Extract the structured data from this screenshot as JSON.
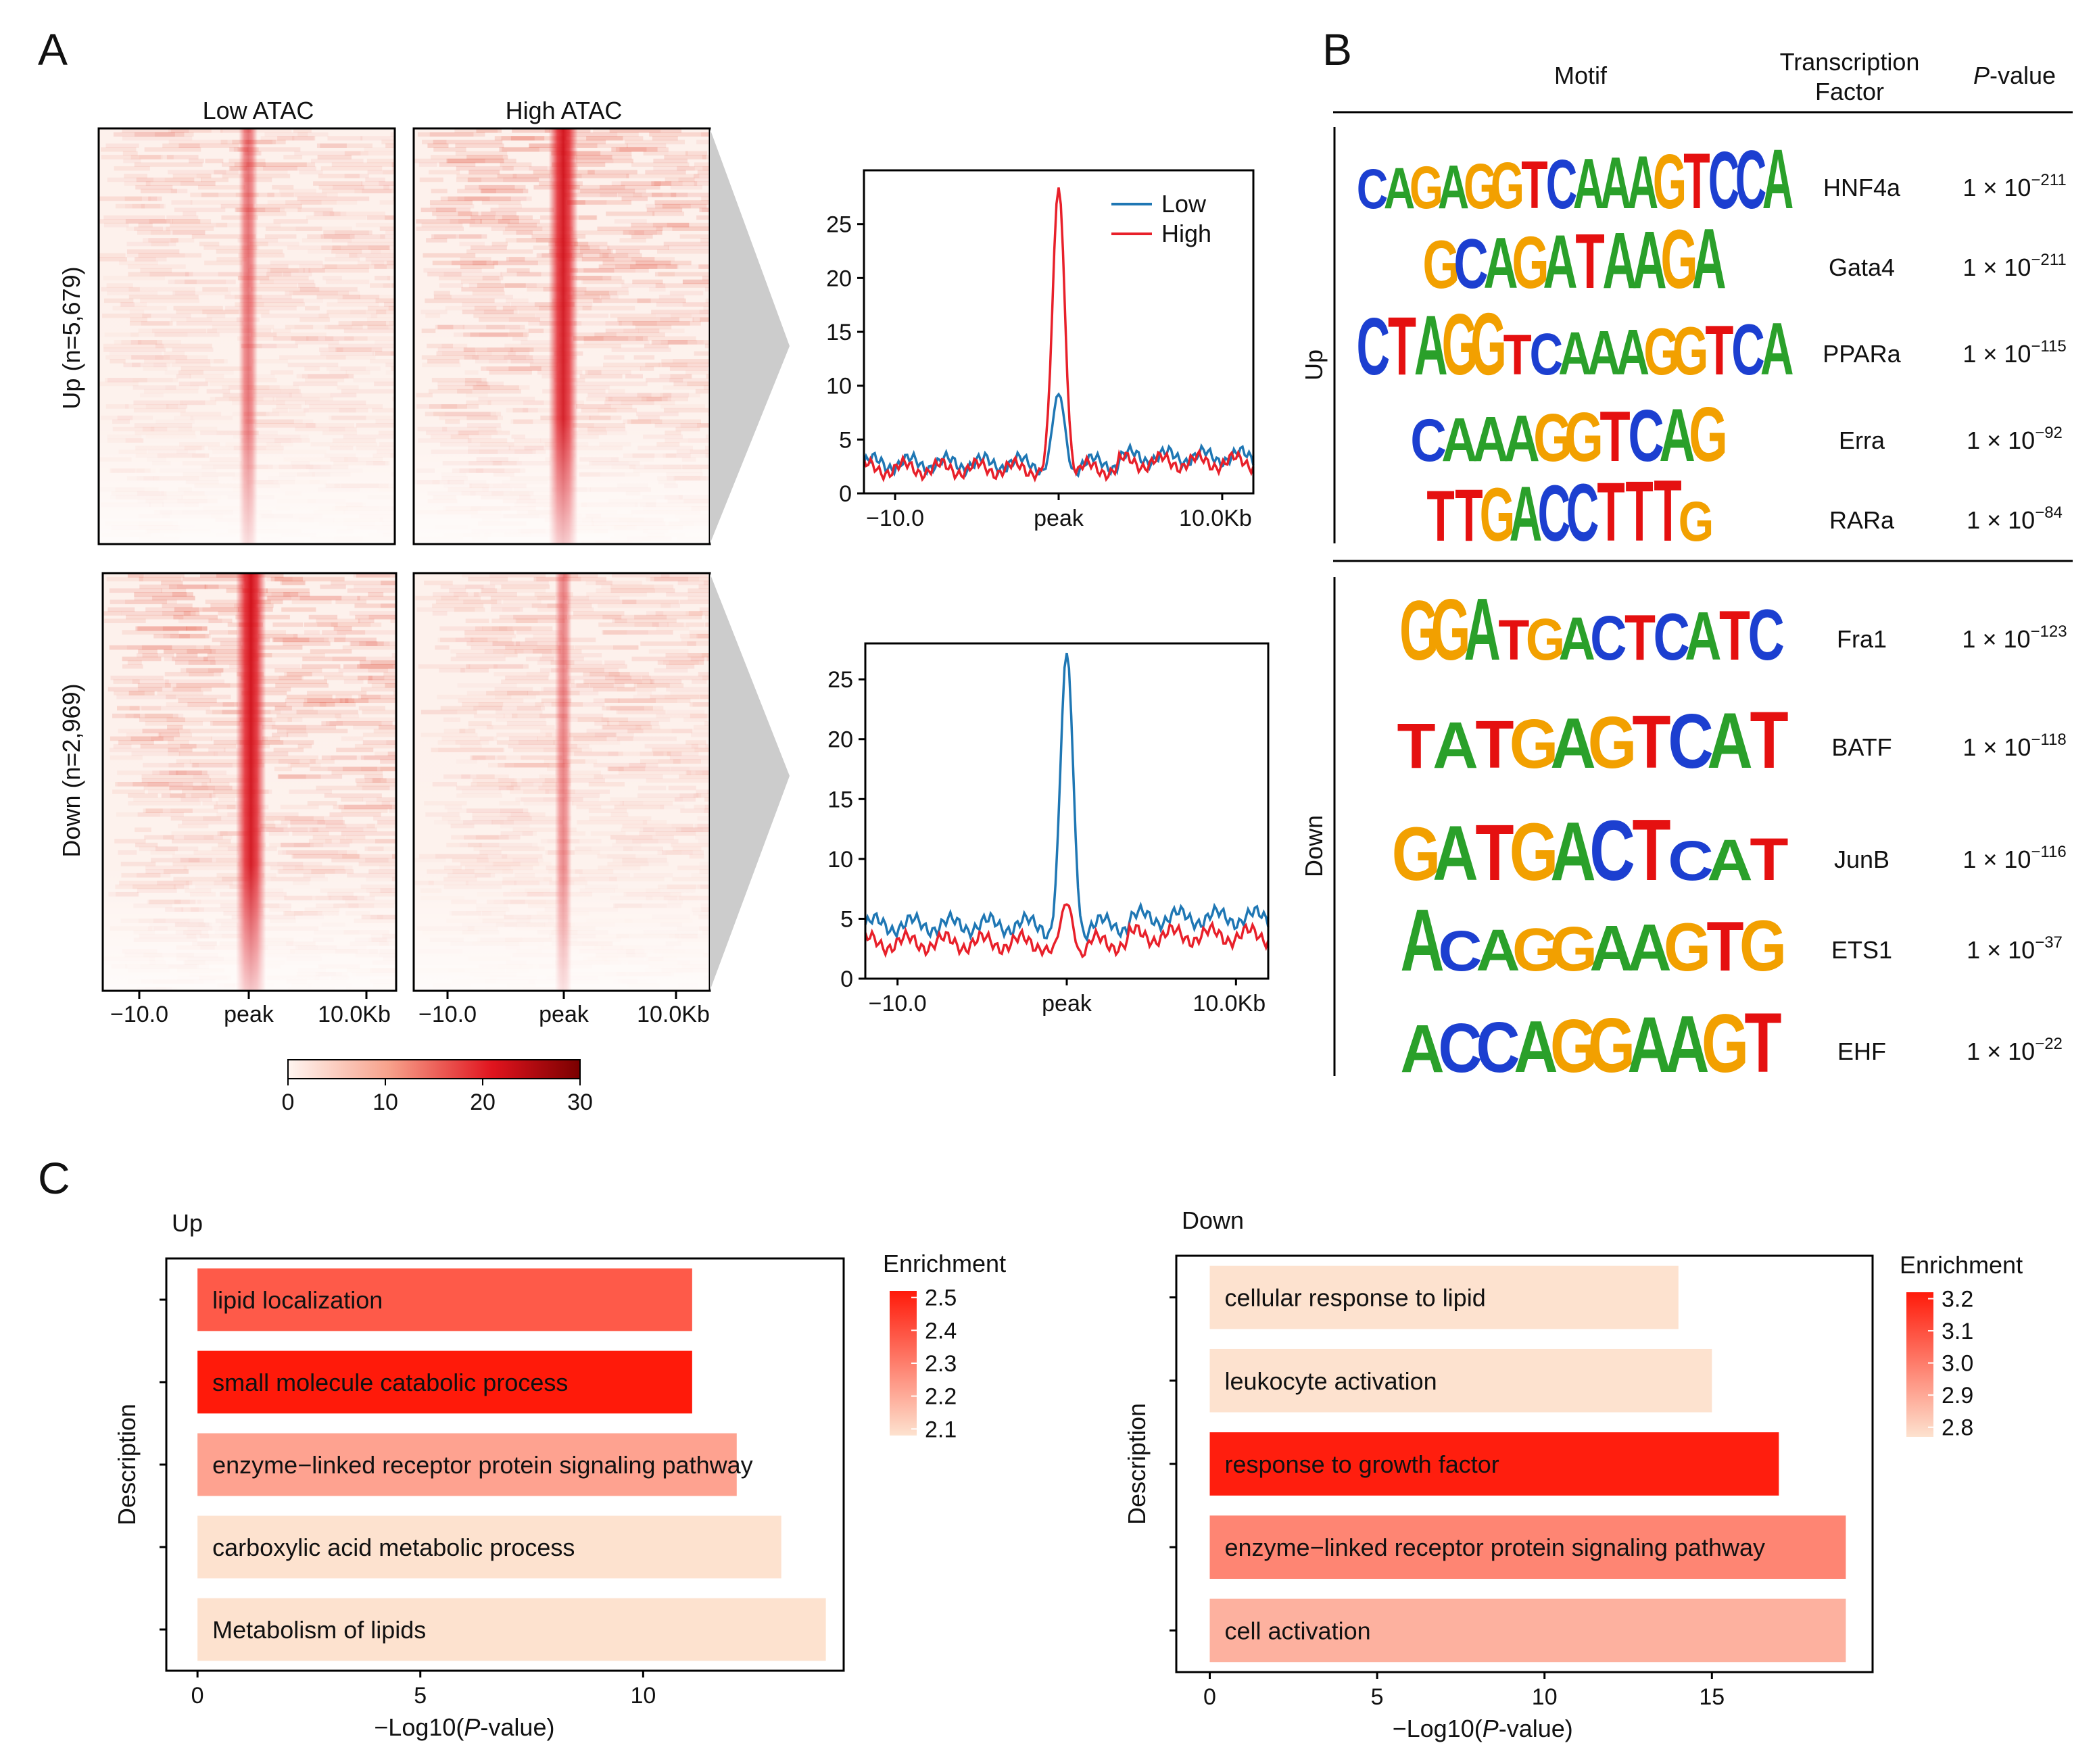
{
  "panel_letters": {
    "a": "A",
    "b": "B",
    "c": "C"
  },
  "colors": {
    "low": "#1f77b4",
    "high": "#e8202a",
    "heat_lo": "#fff5f0",
    "heat_hi": "#8b0000",
    "A": "#2aa02a",
    "C": "#1c3fd0",
    "G": "#f2a000",
    "T": "#e51010",
    "enrich_lo": "#fde2cf",
    "enrich_hi": "#ff1a0a",
    "funnel": "#cccccc"
  },
  "heatmaps": {
    "col_titles": [
      "Low ATAC",
      "High ATAC"
    ],
    "row_titles": [
      "Up (n=5,679)",
      "Down (n=2,969)"
    ],
    "xticks": [
      "−10.0",
      "peak",
      "10.0Kb"
    ],
    "intensity": [
      [
        0.35,
        0.9
      ],
      [
        0.95,
        0.25
      ]
    ],
    "colorbar": {
      "ticks": [
        "0",
        "10",
        "20",
        "30"
      ],
      "range": [
        0,
        30
      ]
    }
  },
  "chart_data": [
    {
      "type": "line",
      "panel": "A-up-profile",
      "legend": [
        "Low",
        "High"
      ],
      "legend_position": "top-right",
      "x": [
        -10,
        10
      ],
      "xticks": [
        "−10.0",
        "peak",
        "10.0Kb"
      ],
      "ylim": [
        0,
        30
      ],
      "yticks": [
        "0",
        "5",
        "10",
        "15",
        "20",
        "25"
      ],
      "series": [
        {
          "name": "Low",
          "baseline": 2.8,
          "dip": 0.5,
          "peak": 9.2
        },
        {
          "name": "High",
          "baseline": 2.3,
          "dip": 0.4,
          "peak": 28.4
        }
      ]
    },
    {
      "type": "line",
      "panel": "A-down-profile",
      "legend": [
        "Low",
        "High"
      ],
      "x": [
        -10,
        10
      ],
      "xticks": [
        "−10.0",
        "peak",
        "10.0Kb"
      ],
      "ylim": [
        0,
        28
      ],
      "yticks": [
        "0",
        "5",
        "10",
        "15",
        "20",
        "25"
      ],
      "series": [
        {
          "name": "Low",
          "baseline": 4.5,
          "dip": 1.0,
          "peak": 27.2
        },
        {
          "name": "High",
          "baseline": 3.0,
          "dip": 0.3,
          "peak": 6.2
        }
      ]
    },
    {
      "type": "table",
      "panel": "B-motifs",
      "headers": {
        "motif": "Motif",
        "tf_line1": "Transcription",
        "tf_line2": "Factor",
        "pval_p": "P",
        "pval_rest": "-value"
      },
      "groups": [
        "Up",
        "Down"
      ],
      "rows": [
        {
          "group": "Up",
          "motif": "CAGAGGTCAAAGTCCA",
          "tf": "HNF4a",
          "p_base": "1 × 10",
          "p_exp": "−211"
        },
        {
          "group": "Up",
          "motif": "GCAGATAAGA",
          "tf": "Gata4",
          "p_base": "1 × 10",
          "p_exp": "−211"
        },
        {
          "group": "Up",
          "motif": "CTAGGTCAAAGGTCA",
          "tf": "PPARa",
          "p_base": "1 × 10",
          "p_exp": "−115"
        },
        {
          "group": "Up",
          "motif": "CAAAGGTCAG",
          "tf": "Erra",
          "p_base": "1 × 10",
          "p_exp": "−92"
        },
        {
          "group": "Up",
          "motif": "TTGACCTTTG",
          "tf": "RARa",
          "p_base": "1 × 10",
          "p_exp": "−84"
        },
        {
          "group": "Down",
          "motif": "GGATGACTCATC",
          "tf": "Fra1",
          "p_base": "1 × 10",
          "p_exp": "−123"
        },
        {
          "group": "Down",
          "motif": "TATGAGTCAT",
          "tf": "BATF",
          "p_base": "1 × 10",
          "p_exp": "−118"
        },
        {
          "group": "Down",
          "motif": "GATGACTCAT",
          "tf": "JunB",
          "p_base": "1 × 10",
          "p_exp": "−116"
        },
        {
          "group": "Down",
          "motif": "ACAGGAAGTG",
          "tf": "ETS1",
          "p_base": "1 × 10",
          "p_exp": "−37"
        },
        {
          "group": "Down",
          "motif": "ACCAGGAAGT",
          "tf": "EHF",
          "p_base": "1 × 10",
          "p_exp": "−22"
        }
      ]
    },
    {
      "type": "bar",
      "panel": "C-up",
      "title": "Up",
      "xlabel_pre": "−Log10(",
      "xlabel_p": "P",
      "xlabel_post": "-value)",
      "ylabel": "Description",
      "xlim": [
        -0.7,
        14.5
      ],
      "xticks": [
        0,
        5,
        10
      ],
      "categories": [
        "lipid localization",
        "small molecule catabolic process",
        "enzyme−linked receptor protein signaling pathway",
        "carboxylic acid metabolic process",
        "Metabolism of lipids"
      ],
      "values": [
        11.1,
        11.1,
        12.1,
        13.1,
        14.1
      ],
      "enrichment": [
        2.38,
        2.52,
        2.22,
        2.08,
        2.08
      ],
      "legend_title": "Enrichment",
      "legend_ticks": [
        "2.5",
        "2.4",
        "2.3",
        "2.2",
        "2.1"
      ],
      "legend_range": [
        2.08,
        2.52
      ]
    },
    {
      "type": "bar",
      "panel": "C-down",
      "title": "Down",
      "xlabel_pre": "−Log10(",
      "xlabel_p": "P",
      "xlabel_post": "-value)",
      "ylabel": "Description",
      "xlim": [
        -1.0,
        19.8
      ],
      "xticks": [
        0,
        5,
        10,
        15
      ],
      "categories": [
        "cellular response to lipid",
        "leukocyte activation",
        "response to growth factor",
        "enzyme−linked receptor protein signaling pathway",
        "cell activation"
      ],
      "values": [
        14.0,
        15.0,
        17.0,
        19.0,
        19.0
      ],
      "enrichment": [
        2.77,
        2.77,
        3.21,
        2.98,
        2.88
      ],
      "legend_title": "Enrichment",
      "legend_ticks": [
        "3.2",
        "3.1",
        "3.0",
        "2.9",
        "2.8"
      ],
      "legend_range": [
        2.77,
        3.22
      ]
    }
  ]
}
